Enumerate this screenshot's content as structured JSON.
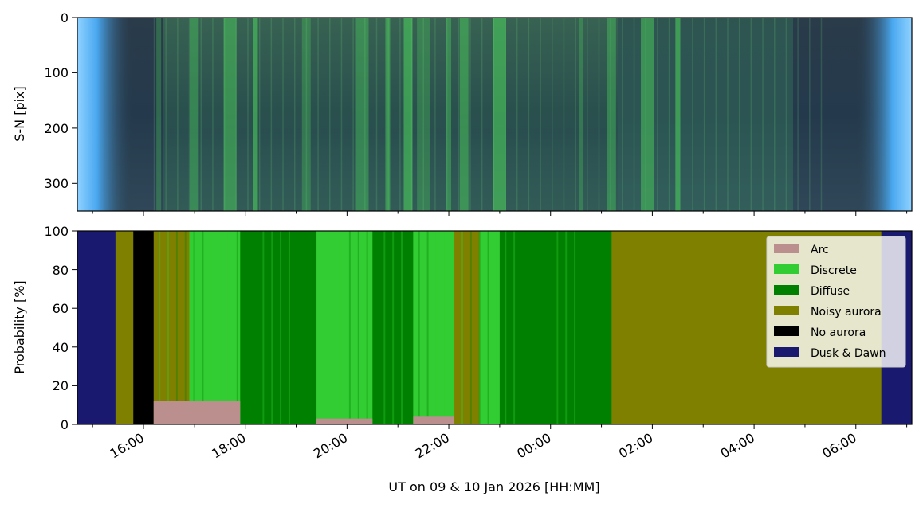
{
  "figure": {
    "xlabel": "UT on 09 & 10 Jan 2026 [HH:MM]",
    "xticks": [
      "16:00",
      "18:00",
      "20:00",
      "22:00",
      "00:00",
      "02:00",
      "04:00",
      "06:00"
    ]
  },
  "chart_data": [
    {
      "type": "heatmap",
      "description_panel": "keogram",
      "ylabel": "S-N [pix]",
      "ylim": [
        0,
        350
      ],
      "y_inverted": true,
      "yticks": [
        "0",
        "100",
        "200",
        "300"
      ],
      "x_range_hours": [
        14.7,
        31.1
      ],
      "colors": {
        "background": "#233a4e",
        "aurora": "#48c35a",
        "twilight": "#4aa8f0"
      },
      "bright_features_hours": [
        16.3,
        17.0,
        17.7,
        18.2,
        19.2,
        20.3,
        20.8,
        21.2,
        21.5,
        22.0,
        22.3,
        23.0,
        24.6,
        25.2,
        25.9,
        26.5
      ]
    },
    {
      "type": "area",
      "stacked": true,
      "ylabel": "Probability [%]",
      "ylim": [
        0,
        100
      ],
      "yticks": [
        "0",
        "20",
        "40",
        "60",
        "80",
        "100"
      ],
      "legend_position": "top-right",
      "series_order": [
        "Arc",
        "Discrete",
        "Diffuse",
        "Noisy aurora",
        "No aurora",
        "Dusk & Dawn"
      ],
      "series": [
        {
          "name": "Arc",
          "color": "#bc8f8f"
        },
        {
          "name": "Discrete",
          "color": "#32cd32"
        },
        {
          "name": "Diffuse",
          "color": "#008000"
        },
        {
          "name": "Noisy aurora",
          "color": "#808000"
        },
        {
          "name": "No aurora",
          "color": "#000000"
        },
        {
          "name": "Dusk & Dawn",
          "color": "#191970"
        }
      ],
      "segments_hours": [
        {
          "start": 14.7,
          "end": 15.45,
          "class": "Dusk & Dawn"
        },
        {
          "start": 15.45,
          "end": 15.8,
          "class": "Noisy aurora"
        },
        {
          "start": 15.8,
          "end": 16.2,
          "class": "No aurora"
        },
        {
          "start": 16.2,
          "end": 16.9,
          "class": "Noisy aurora"
        },
        {
          "start": 16.9,
          "end": 17.9,
          "class": "Discrete"
        },
        {
          "start": 17.9,
          "end": 19.4,
          "class": "Diffuse"
        },
        {
          "start": 19.4,
          "end": 20.5,
          "class": "Discrete"
        },
        {
          "start": 20.5,
          "end": 21.3,
          "class": "Diffuse"
        },
        {
          "start": 21.3,
          "end": 22.1,
          "class": "Discrete"
        },
        {
          "start": 22.1,
          "end": 22.6,
          "class": "Noisy aurora"
        },
        {
          "start": 22.6,
          "end": 23.0,
          "class": "Discrete"
        },
        {
          "start": 23.0,
          "end": 25.05,
          "class": "Diffuse"
        },
        {
          "start": 25.05,
          "end": 25.2,
          "class": "Diffuse"
        },
        {
          "start": 25.2,
          "end": 30.5,
          "class": "Noisy aurora"
        },
        {
          "start": 30.5,
          "end": 31.1,
          "class": "Dusk & Dawn"
        }
      ],
      "arc_base_percent": [
        {
          "start": 16.2,
          "end": 17.9,
          "value": 12
        },
        {
          "start": 19.4,
          "end": 20.5,
          "value": 3
        },
        {
          "start": 21.3,
          "end": 22.1,
          "value": 4
        }
      ]
    }
  ]
}
